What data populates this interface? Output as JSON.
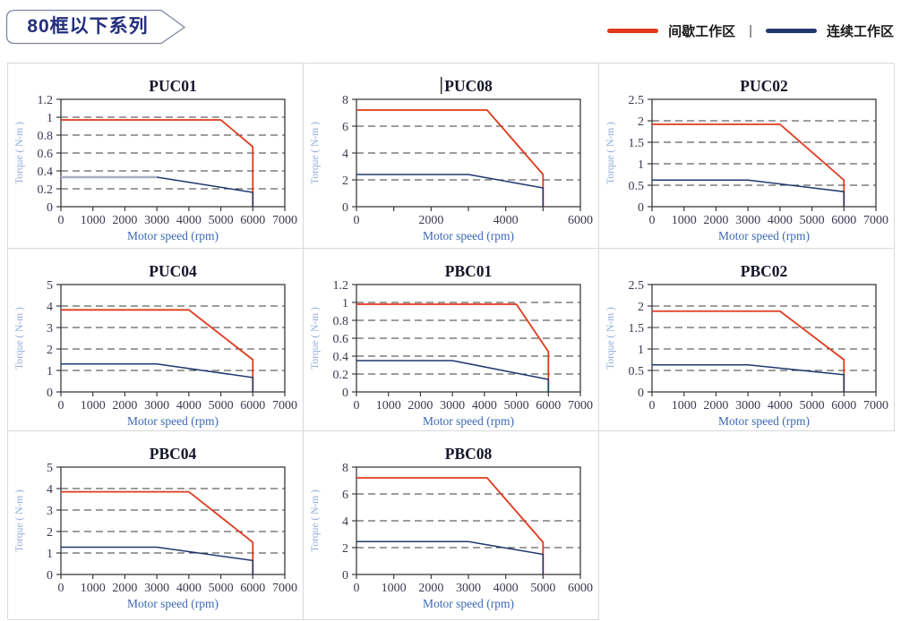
{
  "header": {
    "badge": "80框以下系列"
  },
  "legend": {
    "separator": "|",
    "items": [
      {
        "label": "间歇工作区",
        "role": "intermittent"
      },
      {
        "label": "连续工作区",
        "role": "continuous"
      }
    ]
  },
  "colors": {
    "intermittent": "#e0391b",
    "continuous": "#21386e",
    "continuous_light": "#a9b0c4",
    "axis": "#3b3b3b",
    "tick_label": "#3a3a52",
    "title": "#15152a",
    "y_axis_label": "#92abdb",
    "x_axis_label": "#3c68b4",
    "cell_border": "#d9d9de",
    "badge_text": "#232e7d",
    "badge_border": "#8086a6"
  },
  "chart_data": [
    {
      "type": "line",
      "title": "PUC01",
      "caret_before_title": false,
      "xlabel": "Motor speed (rpm)",
      "ylabel": "Torque ( N-m )",
      "xlim": [
        0,
        7000
      ],
      "ylim": [
        0,
        1.2
      ],
      "xticks": [
        0,
        1000,
        2000,
        3000,
        4000,
        5000,
        6000,
        7000
      ],
      "xlabels": [
        0,
        1000,
        2000,
        3000,
        4000,
        5000,
        6000,
        7000
      ],
      "yticks": [
        0,
        0.2,
        0.4,
        0.6,
        0.8,
        1,
        1.2
      ],
      "series": [
        {
          "name": "间歇工作区",
          "role": "intermittent",
          "points": [
            [
              0,
              0.97
            ],
            [
              5000,
              0.97
            ],
            [
              6000,
              0.67
            ],
            [
              6000,
              0
            ]
          ]
        },
        {
          "name": "连续工作区",
          "role": "continuous_light",
          "points": [
            [
              0,
              0.33
            ],
            [
              3000,
              0.33
            ]
          ]
        },
        {
          "name": "连续工作区",
          "role": "continuous",
          "points": [
            [
              3000,
              0.33
            ],
            [
              6000,
              0.16
            ],
            [
              6000,
              0
            ]
          ]
        }
      ]
    },
    {
      "type": "line",
      "title": "PUC08",
      "caret_before_title": true,
      "xlabel": "Motor speed (rpm)",
      "ylabel": "Torque ( N-m )",
      "xlim": [
        0,
        6000
      ],
      "ylim": [
        0,
        8
      ],
      "xticks": [
        0,
        1000,
        2000,
        3000,
        4000,
        5000,
        6000
      ],
      "xlabels": [
        0,
        2000,
        4000,
        6000
      ],
      "yticks": [
        0,
        2,
        4,
        6,
        8
      ],
      "series": [
        {
          "name": "间歇工作区",
          "role": "intermittent",
          "points": [
            [
              0,
              7.2
            ],
            [
              3500,
              7.2
            ],
            [
              5000,
              2.4
            ],
            [
              5000,
              0
            ]
          ]
        },
        {
          "name": "连续工作区",
          "role": "continuous",
          "points": [
            [
              0,
              2.4
            ],
            [
              3000,
              2.4
            ],
            [
              5000,
              1.4
            ],
            [
              5000,
              0
            ]
          ]
        }
      ]
    },
    {
      "type": "line",
      "title": "PUC02",
      "caret_before_title": false,
      "xlabel": "Motor speed (rpm)",
      "ylabel": "Torque ( N-m )",
      "xlim": [
        0,
        7000
      ],
      "ylim": [
        0,
        2.5
      ],
      "xticks": [
        0,
        1000,
        2000,
        3000,
        4000,
        5000,
        6000,
        7000
      ],
      "xlabels": [
        0,
        1000,
        2000,
        3000,
        4000,
        5000,
        6000,
        7000
      ],
      "yticks": [
        0,
        0.5,
        1,
        1.5,
        2,
        2.5
      ],
      "series": [
        {
          "name": "间歇工作区",
          "role": "intermittent",
          "points": [
            [
              0,
              1.92
            ],
            [
              4000,
              1.92
            ],
            [
              6000,
              0.62
            ],
            [
              6000,
              0
            ]
          ]
        },
        {
          "name": "连续工作区",
          "role": "continuous",
          "points": [
            [
              0,
              0.62
            ],
            [
              3000,
              0.62
            ],
            [
              6000,
              0.35
            ],
            [
              6000,
              0
            ]
          ]
        }
      ]
    },
    {
      "type": "line",
      "title": "PUC04",
      "caret_before_title": false,
      "xlabel": "Motor speed (rpm)",
      "ylabel": "Torque ( N-m )",
      "xlim": [
        0,
        7000
      ],
      "ylim": [
        0,
        5
      ],
      "xticks": [
        0,
        1000,
        2000,
        3000,
        4000,
        5000,
        6000,
        7000
      ],
      "xlabels": [
        0,
        1000,
        2000,
        3000,
        4000,
        5000,
        6000,
        7000
      ],
      "yticks": [
        0,
        1,
        2,
        3,
        4,
        5
      ],
      "series": [
        {
          "name": "间歇工作区",
          "role": "intermittent",
          "points": [
            [
              0,
              3.82
            ],
            [
              4000,
              3.82
            ],
            [
              6000,
              1.5
            ],
            [
              6000,
              0
            ]
          ]
        },
        {
          "name": "连续工作区",
          "role": "continuous",
          "points": [
            [
              0,
              1.3
            ],
            [
              3000,
              1.3
            ],
            [
              6000,
              0.67
            ],
            [
              6000,
              0
            ]
          ]
        }
      ]
    },
    {
      "type": "line",
      "title": "PBC01",
      "caret_before_title": false,
      "xlabel": "Motor speed (rpm)",
      "ylabel": "Torque ( N-m )",
      "xlim": [
        0,
        7000
      ],
      "ylim": [
        0,
        1.2
      ],
      "xticks": [
        0,
        1000,
        2000,
        3000,
        4000,
        5000,
        6000,
        7000
      ],
      "xlabels": [
        0,
        1000,
        2000,
        3000,
        4000,
        5000,
        6000,
        7000
      ],
      "yticks": [
        0,
        0.2,
        0.4,
        0.6,
        0.8,
        1,
        1.2
      ],
      "series": [
        {
          "name": "间歇工作区",
          "role": "intermittent",
          "points": [
            [
              0,
              0.98
            ],
            [
              5000,
              0.98
            ],
            [
              6000,
              0.45
            ],
            [
              6000,
              0
            ]
          ]
        },
        {
          "name": "连续工作区",
          "role": "continuous",
          "points": [
            [
              0,
              0.35
            ],
            [
              3000,
              0.35
            ],
            [
              6000,
              0.14
            ],
            [
              6000,
              0
            ]
          ]
        }
      ]
    },
    {
      "type": "line",
      "title": "PBC02",
      "caret_before_title": false,
      "xlabel": "Motor speed (rpm)",
      "ylabel": "Torque ( N-m )",
      "xlim": [
        0,
        7000
      ],
      "ylim": [
        0,
        2.5
      ],
      "xticks": [
        0,
        1000,
        2000,
        3000,
        4000,
        5000,
        6000,
        7000
      ],
      "xlabels": [
        0,
        1000,
        2000,
        3000,
        4000,
        5000,
        6000,
        7000
      ],
      "yticks": [
        0,
        0.5,
        1,
        1.5,
        2,
        2.5
      ],
      "series": [
        {
          "name": "间歇工作区",
          "role": "intermittent",
          "points": [
            [
              0,
              1.88
            ],
            [
              4000,
              1.88
            ],
            [
              6000,
              0.75
            ],
            [
              6000,
              0
            ]
          ]
        },
        {
          "name": "连续工作区",
          "role": "continuous",
          "points": [
            [
              0,
              0.63
            ],
            [
              3000,
              0.63
            ],
            [
              6000,
              0.4
            ],
            [
              6000,
              0
            ]
          ]
        }
      ]
    },
    {
      "type": "line",
      "title": "PBC04",
      "caret_before_title": false,
      "xlabel": "Motor speed (rpm)",
      "ylabel": "Torque ( N-m )",
      "xlim": [
        0,
        7000
      ],
      "ylim": [
        0,
        5
      ],
      "xticks": [
        0,
        1000,
        2000,
        3000,
        4000,
        5000,
        6000,
        7000
      ],
      "xlabels": [
        0,
        1000,
        2000,
        3000,
        4000,
        5000,
        6000,
        7000
      ],
      "yticks": [
        0,
        1,
        2,
        3,
        4,
        5
      ],
      "series": [
        {
          "name": "间歇工作区",
          "role": "intermittent",
          "points": [
            [
              0,
              3.85
            ],
            [
              4000,
              3.85
            ],
            [
              6000,
              1.5
            ],
            [
              6000,
              0
            ]
          ]
        },
        {
          "name": "连续工作区",
          "role": "continuous",
          "points": [
            [
              0,
              1.27
            ],
            [
              3000,
              1.27
            ],
            [
              6000,
              0.65
            ],
            [
              6000,
              0
            ]
          ]
        }
      ]
    },
    {
      "type": "line",
      "title": "PBC08",
      "caret_before_title": false,
      "xlabel": "Motor speed (rpm)",
      "ylabel": "Torque ( N-m )",
      "xlim": [
        0,
        6000
      ],
      "ylim": [
        0,
        8
      ],
      "xticks": [
        0,
        1000,
        2000,
        3000,
        4000,
        5000,
        6000
      ],
      "xlabels": [
        0,
        1000,
        2000,
        3000,
        4000,
        5000,
        6000
      ],
      "yticks": [
        0,
        2,
        4,
        6,
        8
      ],
      "series": [
        {
          "name": "间歇工作区",
          "role": "intermittent",
          "points": [
            [
              0,
              7.2
            ],
            [
              3500,
              7.2
            ],
            [
              5000,
              2.4
            ],
            [
              5000,
              0
            ]
          ]
        },
        {
          "name": "连续工作区",
          "role": "continuous",
          "points": [
            [
              0,
              2.45
            ],
            [
              3000,
              2.45
            ],
            [
              5000,
              1.5
            ],
            [
              5000,
              0
            ]
          ]
        }
      ]
    }
  ]
}
